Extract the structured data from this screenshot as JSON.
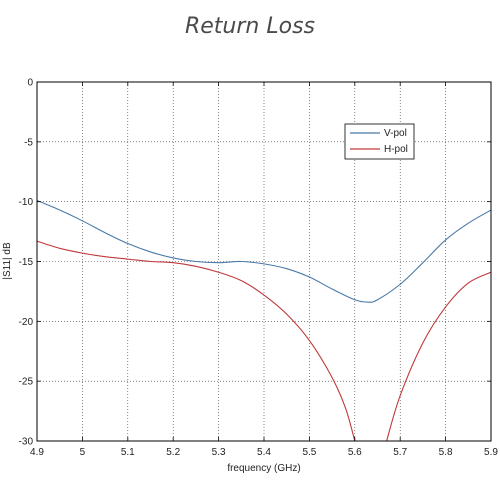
{
  "chart_data": {
    "type": "line",
    "title": "Return Loss",
    "xlabel": "frequency (GHz)",
    "ylabel": "|S11| dB",
    "xlim": [
      4.9,
      5.9
    ],
    "ylim": [
      -30,
      0
    ],
    "xticks": [
      "4.9",
      "5",
      "5.1",
      "5.2",
      "5.3",
      "5.4",
      "5.5",
      "5.6",
      "5.7",
      "5.8",
      "5.9"
    ],
    "yticks": [
      "0",
      "-5",
      "-10",
      "-15",
      "-20",
      "-25",
      "-30"
    ],
    "grid": true,
    "legend_position": "top-right",
    "series": [
      {
        "name": "V-pol",
        "color": "#4a7aa8",
        "points": [
          [
            4.9,
            -9.9
          ],
          [
            4.95,
            -10.7
          ],
          [
            5.0,
            -11.6
          ],
          [
            5.05,
            -12.6
          ],
          [
            5.1,
            -13.5
          ],
          [
            5.15,
            -14.2
          ],
          [
            5.2,
            -14.7
          ],
          [
            5.25,
            -15.0
          ],
          [
            5.3,
            -15.1
          ],
          [
            5.35,
            -15.0
          ],
          [
            5.4,
            -15.2
          ],
          [
            5.45,
            -15.6
          ],
          [
            5.5,
            -16.3
          ],
          [
            5.55,
            -17.3
          ],
          [
            5.6,
            -18.2
          ],
          [
            5.63,
            -18.4
          ],
          [
            5.65,
            -18.2
          ],
          [
            5.7,
            -16.9
          ],
          [
            5.75,
            -15.1
          ],
          [
            5.8,
            -13.2
          ],
          [
            5.85,
            -11.8
          ],
          [
            5.9,
            -10.7
          ]
        ]
      },
      {
        "name": "H-pol",
        "color": "#c0393b",
        "points": [
          [
            4.9,
            -13.3
          ],
          [
            4.95,
            -13.9
          ],
          [
            5.0,
            -14.3
          ],
          [
            5.05,
            -14.6
          ],
          [
            5.1,
            -14.8
          ],
          [
            5.15,
            -15.0
          ],
          [
            5.2,
            -15.1
          ],
          [
            5.25,
            -15.4
          ],
          [
            5.3,
            -15.9
          ],
          [
            5.35,
            -16.6
          ],
          [
            5.4,
            -17.8
          ],
          [
            5.45,
            -19.4
          ],
          [
            5.5,
            -21.6
          ],
          [
            5.55,
            -24.7
          ],
          [
            5.58,
            -27.3
          ],
          [
            5.6,
            -30.0
          ]
        ]
      },
      {
        "name": "H-pol",
        "color": "#c0393b",
        "points": [
          [
            5.67,
            -30.0
          ],
          [
            5.7,
            -26.2
          ],
          [
            5.75,
            -21.8
          ],
          [
            5.8,
            -18.8
          ],
          [
            5.85,
            -16.8
          ],
          [
            5.9,
            -15.9
          ]
        ]
      }
    ]
  }
}
